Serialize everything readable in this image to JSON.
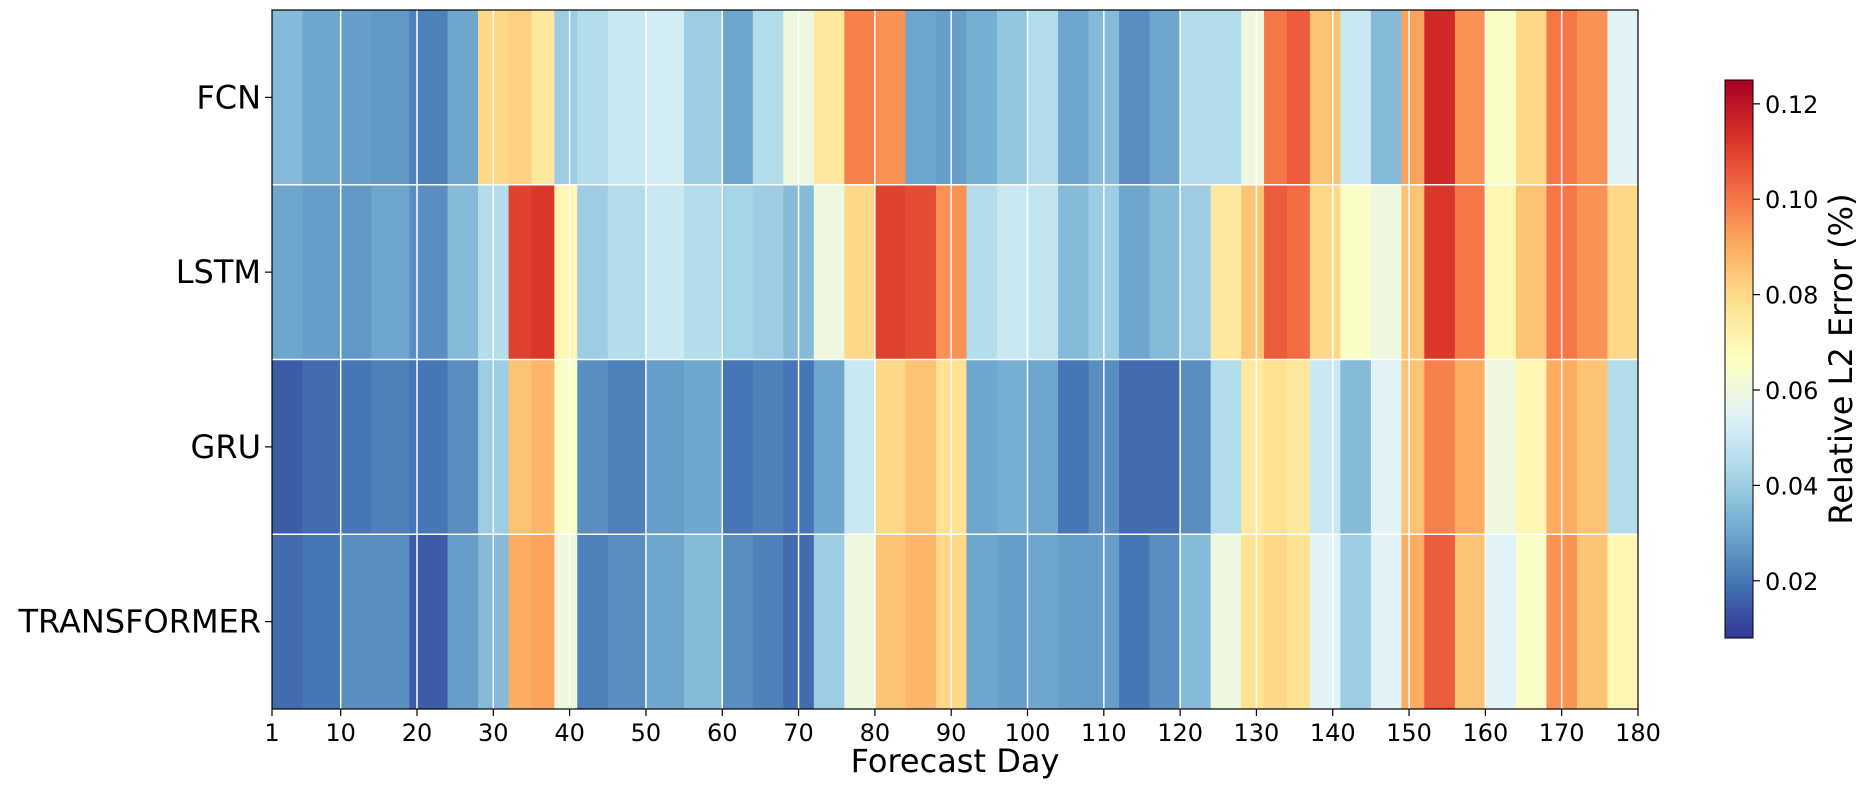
{
  "chart_data": {
    "type": "heatmap",
    "title": "",
    "xlabel": "Forecast Day",
    "ylabel": "",
    "rows": [
      "FCN",
      "LSTM",
      "GRU",
      "TRANSFORMER"
    ],
    "x_range": [
      1,
      180
    ],
    "x_ticks": [
      "1",
      "10",
      "20",
      "30",
      "40",
      "50",
      "60",
      "70",
      "80",
      "90",
      "100",
      "110",
      "120",
      "130",
      "140",
      "150",
      "160",
      "170",
      "180"
    ],
    "colorbar": {
      "label": "Relative L2 Error (%)",
      "range": [
        0.008,
        0.125
      ],
      "ticks": [
        "0.02",
        "0.04",
        "0.06",
        "0.08",
        "0.10",
        "0.12"
      ],
      "colormap": "RdYlBu_r"
    },
    "segment_days": [
      1,
      5,
      10,
      14,
      19,
      24,
      28,
      32,
      35,
      38,
      41,
      45,
      50,
      55,
      60,
      64,
      68,
      72,
      76,
      80,
      84,
      88,
      92,
      96,
      100,
      104,
      108,
      112,
      116,
      120,
      124,
      128,
      131,
      134,
      137,
      141,
      145,
      149,
      152,
      156,
      160,
      164,
      168,
      172,
      176
    ],
    "series": [
      {
        "name": "FCN",
        "values": [
          0.035,
          0.03,
          0.028,
          0.027,
          0.022,
          0.03,
          0.08,
          0.082,
          0.075,
          0.04,
          0.045,
          0.05,
          0.052,
          0.04,
          0.03,
          0.045,
          0.06,
          0.075,
          0.098,
          0.095,
          0.03,
          0.028,
          0.032,
          0.038,
          0.045,
          0.03,
          0.035,
          0.025,
          0.03,
          0.045,
          0.045,
          0.06,
          0.1,
          0.105,
          0.085,
          0.05,
          0.035,
          0.092,
          0.115,
          0.095,
          0.065,
          0.08,
          0.1,
          0.095,
          0.055
        ]
      },
      {
        "name": "LSTM",
        "values": [
          0.03,
          0.028,
          0.027,
          0.03,
          0.025,
          0.035,
          0.045,
          0.11,
          0.112,
          0.07,
          0.04,
          0.045,
          0.05,
          0.045,
          0.042,
          0.04,
          0.035,
          0.06,
          0.08,
          0.11,
          0.108,
          0.095,
          0.045,
          0.05,
          0.048,
          0.035,
          0.04,
          0.03,
          0.035,
          0.04,
          0.075,
          0.085,
          0.105,
          0.102,
          0.08,
          0.065,
          0.06,
          0.085,
          0.112,
          0.1,
          0.07,
          0.085,
          0.1,
          0.095,
          0.08
        ]
      },
      {
        "name": "GRU",
        "values": [
          0.015,
          0.018,
          0.02,
          0.022,
          0.02,
          0.025,
          0.04,
          0.085,
          0.088,
          0.065,
          0.025,
          0.022,
          0.028,
          0.03,
          0.02,
          0.022,
          0.02,
          0.03,
          0.05,
          0.08,
          0.085,
          0.078,
          0.03,
          0.032,
          0.03,
          0.02,
          0.025,
          0.018,
          0.018,
          0.025,
          0.045,
          0.075,
          0.078,
          0.075,
          0.05,
          0.035,
          0.055,
          0.085,
          0.098,
          0.09,
          0.06,
          0.07,
          0.09,
          0.085,
          0.045
        ]
      },
      {
        "name": "TRANSFORMER",
        "values": [
          0.018,
          0.02,
          0.025,
          0.025,
          0.015,
          0.028,
          0.035,
          0.09,
          0.092,
          0.06,
          0.022,
          0.025,
          0.03,
          0.035,
          0.025,
          0.022,
          0.018,
          0.04,
          0.06,
          0.085,
          0.088,
          0.08,
          0.03,
          0.028,
          0.03,
          0.028,
          0.028,
          0.02,
          0.025,
          0.035,
          0.06,
          0.078,
          0.08,
          0.078,
          0.055,
          0.04,
          0.055,
          0.09,
          0.105,
          0.085,
          0.055,
          0.065,
          0.095,
          0.085,
          0.07
        ]
      }
    ]
  }
}
